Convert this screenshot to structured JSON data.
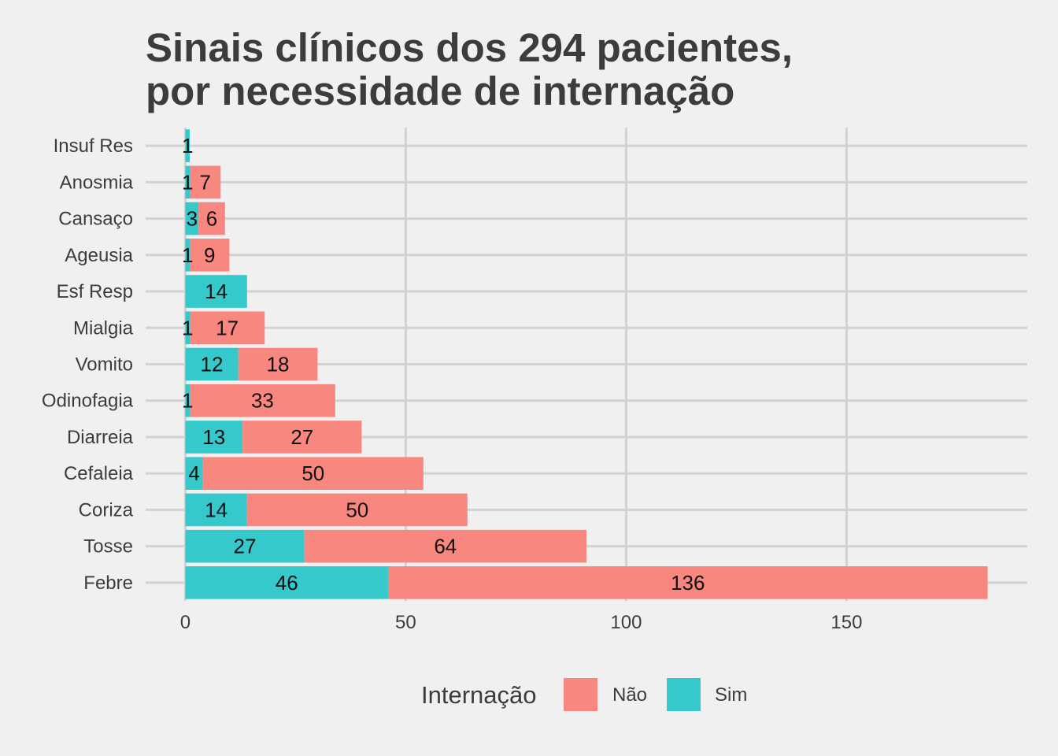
{
  "chart_data": {
    "type": "bar",
    "orientation": "horizontal",
    "stacked": true,
    "title_lines": [
      "Sinais clínicos dos 294 pacientes,",
      "por necessidade de internação"
    ],
    "categories": [
      "Insuf Res",
      "Anosmia",
      "Cansaço",
      "Ageusia",
      "Esf Resp",
      "Mialgia",
      "Vomito",
      "Odinofagia",
      "Diarreia",
      "Cefaleia",
      "Coriza",
      "Tosse",
      "Febre"
    ],
    "series": [
      {
        "name": "Sim",
        "color": "#36c9cc",
        "values": [
          1,
          1,
          3,
          1,
          14,
          1,
          12,
          1,
          13,
          4,
          14,
          27,
          46
        ]
      },
      {
        "name": "Não",
        "color": "#f8877f",
        "values": [
          0,
          7,
          6,
          9,
          0,
          17,
          18,
          33,
          27,
          50,
          50,
          64,
          136
        ]
      }
    ],
    "x_ticks": [
      0,
      50,
      100,
      150
    ],
    "xlim": [
      -9,
      191
    ],
    "grid": true,
    "legend": {
      "title": "Internação",
      "position": "bottom",
      "items": [
        {
          "label": "Não",
          "color": "#f8877f"
        },
        {
          "label": "Sim",
          "color": "#36c9cc"
        }
      ]
    }
  }
}
